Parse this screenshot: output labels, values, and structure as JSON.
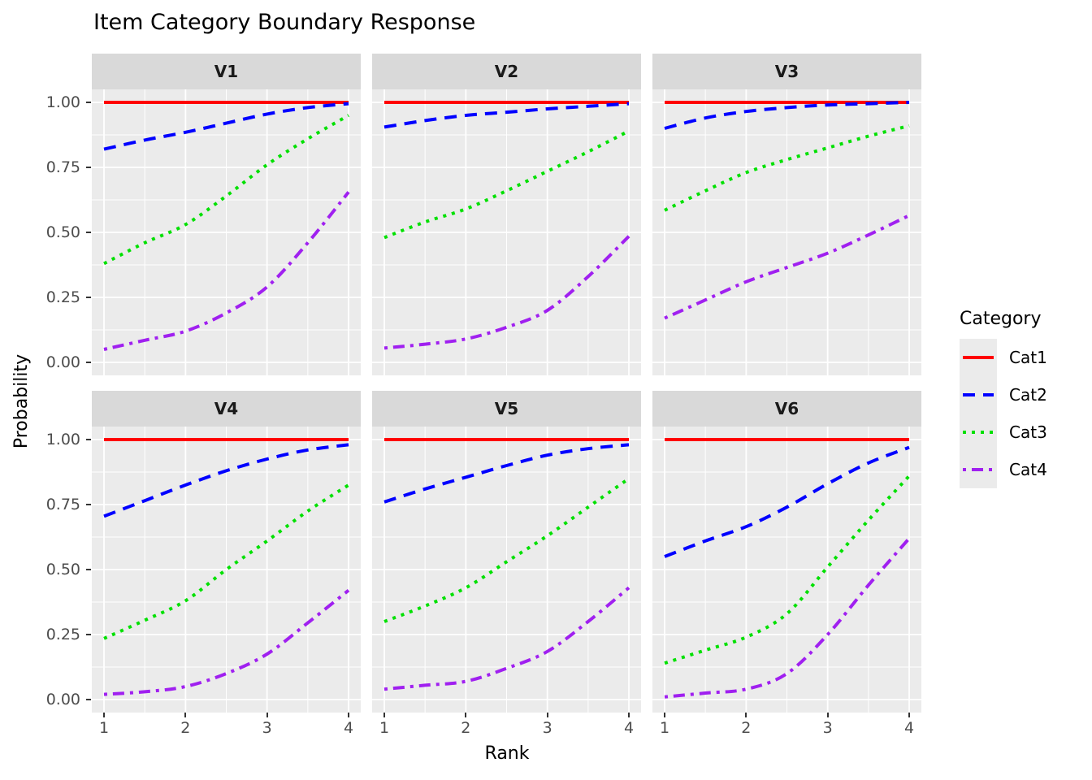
{
  "chart_data": {
    "type": "line",
    "title": "Item Category Boundary Response",
    "xlabel": "Rank",
    "ylabel": "Probability",
    "legend_title": "Category",
    "legend_position": "right",
    "facet_layout": {
      "rows": 2,
      "cols": 3
    },
    "x_ticks": [
      "1",
      "2",
      "3",
      "4"
    ],
    "y_ticks": [
      "1.00",
      "0.75",
      "0.50",
      "0.25",
      "0.00"
    ],
    "y_tick_values": [
      1.0,
      0.75,
      0.5,
      0.25,
      0.0
    ],
    "xlim": [
      1,
      4
    ],
    "ylim": [
      0,
      1
    ],
    "grid": "white major and minor gridlines on gray panel",
    "sample_x": [
      1,
      1.5,
      2,
      2.5,
      3,
      3.5,
      4
    ],
    "series": [
      {
        "name": "Cat1",
        "color": "#FF0000",
        "linetype": "solid"
      },
      {
        "name": "Cat2",
        "color": "#0000FF",
        "linetype": "dashed"
      },
      {
        "name": "Cat3",
        "color": "#00E000",
        "linetype": "dotted"
      },
      {
        "name": "Cat4",
        "color": "#A020F0",
        "linetype": "dotdash"
      }
    ],
    "facets": [
      {
        "label": "V1",
        "values": {
          "Cat1": [
            1,
            1,
            1,
            1,
            1,
            1,
            1
          ],
          "Cat2": [
            0.82,
            0.855,
            0.885,
            0.92,
            0.955,
            0.98,
            0.995
          ],
          "Cat3": [
            0.38,
            0.46,
            0.53,
            0.64,
            0.76,
            0.86,
            0.95
          ],
          "Cat4": [
            0.05,
            0.085,
            0.12,
            0.19,
            0.29,
            0.46,
            0.655
          ]
        }
      },
      {
        "label": "V2",
        "values": {
          "Cat1": [
            1,
            1,
            1,
            1,
            1,
            1,
            1
          ],
          "Cat2": [
            0.905,
            0.93,
            0.95,
            0.962,
            0.975,
            0.985,
            0.995
          ],
          "Cat3": [
            0.48,
            0.54,
            0.59,
            0.66,
            0.735,
            0.81,
            0.89
          ],
          "Cat4": [
            0.055,
            0.07,
            0.09,
            0.135,
            0.2,
            0.33,
            0.485
          ]
        }
      },
      {
        "label": "V3",
        "values": {
          "Cat1": [
            1,
            1,
            1,
            1,
            1,
            1,
            1
          ],
          "Cat2": [
            0.9,
            0.94,
            0.965,
            0.98,
            0.99,
            0.995,
            1.0
          ],
          "Cat3": [
            0.585,
            0.66,
            0.73,
            0.78,
            0.825,
            0.87,
            0.91
          ],
          "Cat4": [
            0.17,
            0.24,
            0.31,
            0.365,
            0.42,
            0.49,
            0.565
          ]
        }
      },
      {
        "label": "V4",
        "values": {
          "Cat1": [
            1,
            1,
            1,
            1,
            1,
            1,
            1
          ],
          "Cat2": [
            0.705,
            0.765,
            0.825,
            0.88,
            0.925,
            0.96,
            0.98
          ],
          "Cat3": [
            0.235,
            0.305,
            0.38,
            0.5,
            0.61,
            0.725,
            0.825
          ],
          "Cat4": [
            0.02,
            0.03,
            0.05,
            0.1,
            0.175,
            0.295,
            0.42
          ]
        }
      },
      {
        "label": "V5",
        "values": {
          "Cat1": [
            1,
            1,
            1,
            1,
            1,
            1,
            1
          ],
          "Cat2": [
            0.76,
            0.81,
            0.855,
            0.9,
            0.94,
            0.965,
            0.98
          ],
          "Cat3": [
            0.3,
            0.36,
            0.43,
            0.53,
            0.63,
            0.74,
            0.85
          ],
          "Cat4": [
            0.04,
            0.055,
            0.07,
            0.12,
            0.185,
            0.3,
            0.43
          ]
        }
      },
      {
        "label": "V6",
        "values": {
          "Cat1": [
            1,
            1,
            1,
            1,
            1,
            1,
            1
          ],
          "Cat2": [
            0.55,
            0.61,
            0.665,
            0.74,
            0.83,
            0.91,
            0.97
          ],
          "Cat3": [
            0.14,
            0.19,
            0.24,
            0.33,
            0.51,
            0.69,
            0.86
          ],
          "Cat4": [
            0.01,
            0.025,
            0.04,
            0.1,
            0.25,
            0.44,
            0.62
          ]
        }
      }
    ]
  },
  "colors": {
    "panel_bg": "#EBEBEB",
    "strip_bg": "#D9D9D9",
    "gridline": "#FFFFFF",
    "axis_text": "#4D4D4D",
    "tick_mark": "#333333",
    "text": "#000000"
  }
}
